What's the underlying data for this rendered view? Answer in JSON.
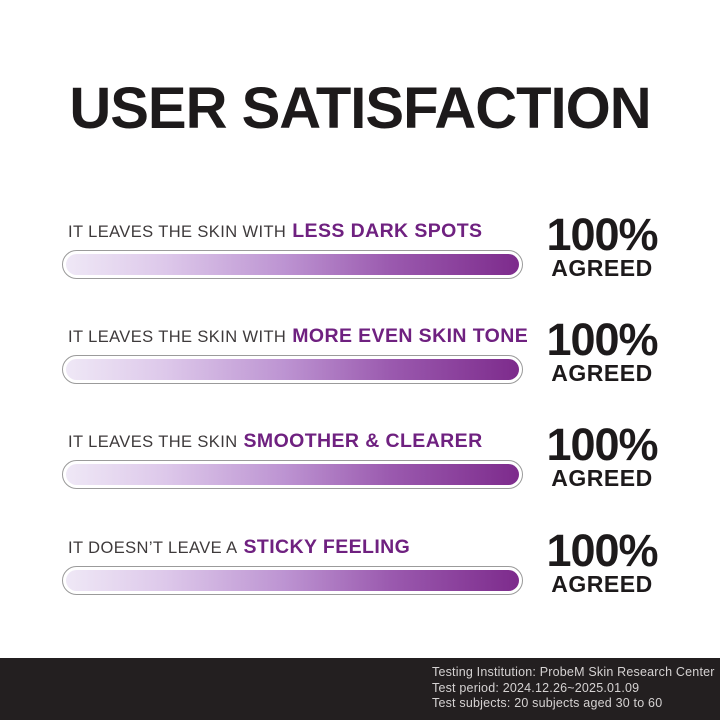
{
  "title": "USER SATISFACTION",
  "colors": {
    "accent_purple": "#6f2180",
    "text_dark": "#1d1a1b",
    "prefix_gray": "#3e3a3b",
    "bar_border": "#9b9b9b",
    "footer_bg": "#231f20",
    "footer_text": "#d5d2d2",
    "bar_gradient_stops": [
      "#efe8f6 0%",
      "#ddc8ea 22%",
      "#bd94d2 48%",
      "#9a59ae 72%",
      "#7d2b8c 100%"
    ]
  },
  "rows": [
    {
      "label_prefix": "IT LEAVES THE SKIN WITH",
      "label_highlight": "LESS DARK SPOTS",
      "value_pct": 100,
      "value_label": "100%",
      "agreed_label": "AGREED"
    },
    {
      "label_prefix": "IT LEAVES THE SKIN WITH",
      "label_highlight": "MORE EVEN SKIN TONE",
      "value_pct": 100,
      "value_label": "100%",
      "agreed_label": "AGREED"
    },
    {
      "label_prefix": "IT LEAVES THE SKIN",
      "label_highlight": "SMOOTHER & CLEARER",
      "value_pct": 100,
      "value_label": "100%",
      "agreed_label": "AGREED"
    },
    {
      "label_prefix": "IT DOESN’T LEAVE A",
      "label_highlight": "STICKY FEELING",
      "value_pct": 100,
      "value_label": "100%",
      "agreed_label": "AGREED"
    }
  ],
  "footer": {
    "lines": [
      "Testing Institution: ProbeM Skin Research Center",
      "Test period: 2024.12.26~2025.01.09",
      "Test subjects: 20 subjects aged 30 to 60"
    ]
  },
  "chart_data": {
    "type": "bar",
    "orientation": "horizontal",
    "title": "USER SATISFACTION",
    "categories": [
      "IT LEAVES THE SKIN WITH LESS DARK SPOTS",
      "IT LEAVES THE SKIN WITH MORE EVEN SKIN TONE",
      "IT LEAVES THE SKIN SMOOTHER & CLEARER",
      "IT DOESN'T LEAVE A STICKY FEELING"
    ],
    "values": [
      100,
      100,
      100,
      100
    ],
    "value_suffix": "% AGREED",
    "xlim": [
      0,
      100
    ],
    "grid": false,
    "legend": false,
    "annotations": [
      "Testing Institution: ProbeM Skin Research Center",
      "Test period: 2024.12.26~2025.01.09",
      "Test subjects: 20 subjects aged 30 to 60"
    ]
  }
}
